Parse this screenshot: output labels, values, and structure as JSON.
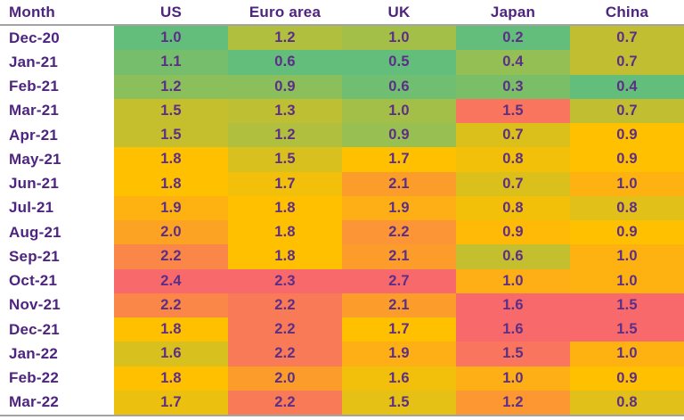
{
  "table": {
    "header": {
      "month_label": "Month",
      "country_labels": [
        "US",
        "Euro area",
        "UK",
        "Japan",
        "China"
      ]
    }
  },
  "chart_data": {
    "type": "heatmap",
    "title": "",
    "columns": [
      "Month",
      "US",
      "Euro area",
      "UK",
      "Japan",
      "China"
    ],
    "categories": [
      "Dec-20",
      "Jan-21",
      "Feb-21",
      "Mar-21",
      "Apr-21",
      "May-21",
      "Jun-21",
      "Jul-21",
      "Aug-21",
      "Sep-21",
      "Oct-21",
      "Nov-21",
      "Dec-21",
      "Jan-22",
      "Feb-22",
      "Mar-22"
    ],
    "series": [
      {
        "name": "US",
        "values": [
          1.0,
          1.1,
          1.2,
          1.5,
          1.5,
          1.8,
          1.8,
          1.9,
          2.0,
          2.2,
          2.4,
          2.2,
          1.8,
          1.6,
          1.8,
          1.7
        ]
      },
      {
        "name": "Euro area",
        "values": [
          1.2,
          0.6,
          0.9,
          1.3,
          1.2,
          1.5,
          1.7,
          1.8,
          1.8,
          1.8,
          2.3,
          2.2,
          2.2,
          2.2,
          2.0,
          2.2
        ]
      },
      {
        "name": "UK",
        "values": [
          1.0,
          0.5,
          0.6,
          1.0,
          0.9,
          1.7,
          2.1,
          1.9,
          2.2,
          2.1,
          2.7,
          2.1,
          1.7,
          1.9,
          1.6,
          1.5
        ]
      },
      {
        "name": "Japan",
        "values": [
          0.2,
          0.4,
          0.3,
          1.5,
          0.7,
          0.8,
          0.7,
          0.8,
          0.9,
          0.6,
          1.0,
          1.6,
          1.6,
          1.5,
          1.0,
          1.2
        ]
      },
      {
        "name": "China",
        "values": [
          0.7,
          0.7,
          0.4,
          0.7,
          0.9,
          0.9,
          1.0,
          0.8,
          0.9,
          1.0,
          1.0,
          1.5,
          1.5,
          1.0,
          0.9,
          0.8
        ]
      }
    ],
    "value_decimals": 1,
    "layout": {
      "grid": "horizontal-rules-only",
      "legend": "none",
      "first_column_background": "#ffffff"
    },
    "color_scale": {
      "mode": "per-column",
      "midpoint": "median",
      "min_color": "#63BE7B",
      "mid_color": "#FFC000",
      "max_color": "#F8696B"
    },
    "colors": {
      "header_text": "#4E2481",
      "value_text": "#5C2E87",
      "header_rule": "#a3a3a3",
      "bottom_rule": "#a3a3a3",
      "row_separator": "rgba(78,48,100,0.24)"
    }
  }
}
